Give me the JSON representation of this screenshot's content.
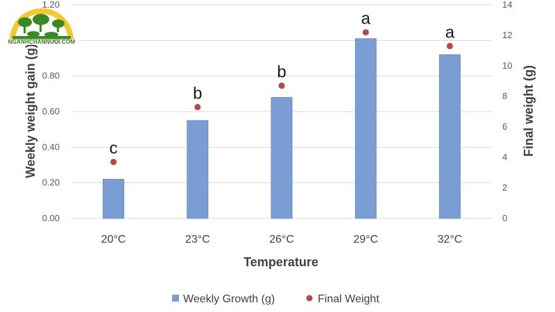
{
  "chart_data": {
    "type": "bar",
    "xlabel": "Temperature",
    "ylabel": "Weekly weight gain (g)",
    "y2label": "Final weight (g)",
    "categories": [
      "20°C",
      "23°C",
      "26°C",
      "29°C",
      "32°C"
    ],
    "ylim": [
      0,
      1.2
    ],
    "y_ticks": [
      "0.00",
      "0.20",
      "0.40",
      "0.60",
      "0.80",
      "1.00",
      "1.20"
    ],
    "y2lim": [
      0,
      14
    ],
    "y2_ticks": [
      "0",
      "2",
      "4",
      "6",
      "8",
      "10",
      "12",
      "14"
    ],
    "grid": true,
    "legend_position": "bottom",
    "series": [
      {
        "name": "Weekly Growth (g)",
        "type": "bar",
        "axis": "left",
        "color": "#7a9ed4",
        "values": [
          0.22,
          0.55,
          0.68,
          1.01,
          0.92
        ]
      },
      {
        "name": "Final Weight",
        "type": "scatter",
        "axis": "right",
        "color": "#b34a45",
        "values": [
          3.7,
          7.3,
          8.7,
          12.2,
          11.3
        ]
      }
    ],
    "annotations": [
      "c",
      "b",
      "b",
      "a",
      "a"
    ]
  },
  "watermark": {
    "text": "NGANHCHANNUOI.COM"
  }
}
